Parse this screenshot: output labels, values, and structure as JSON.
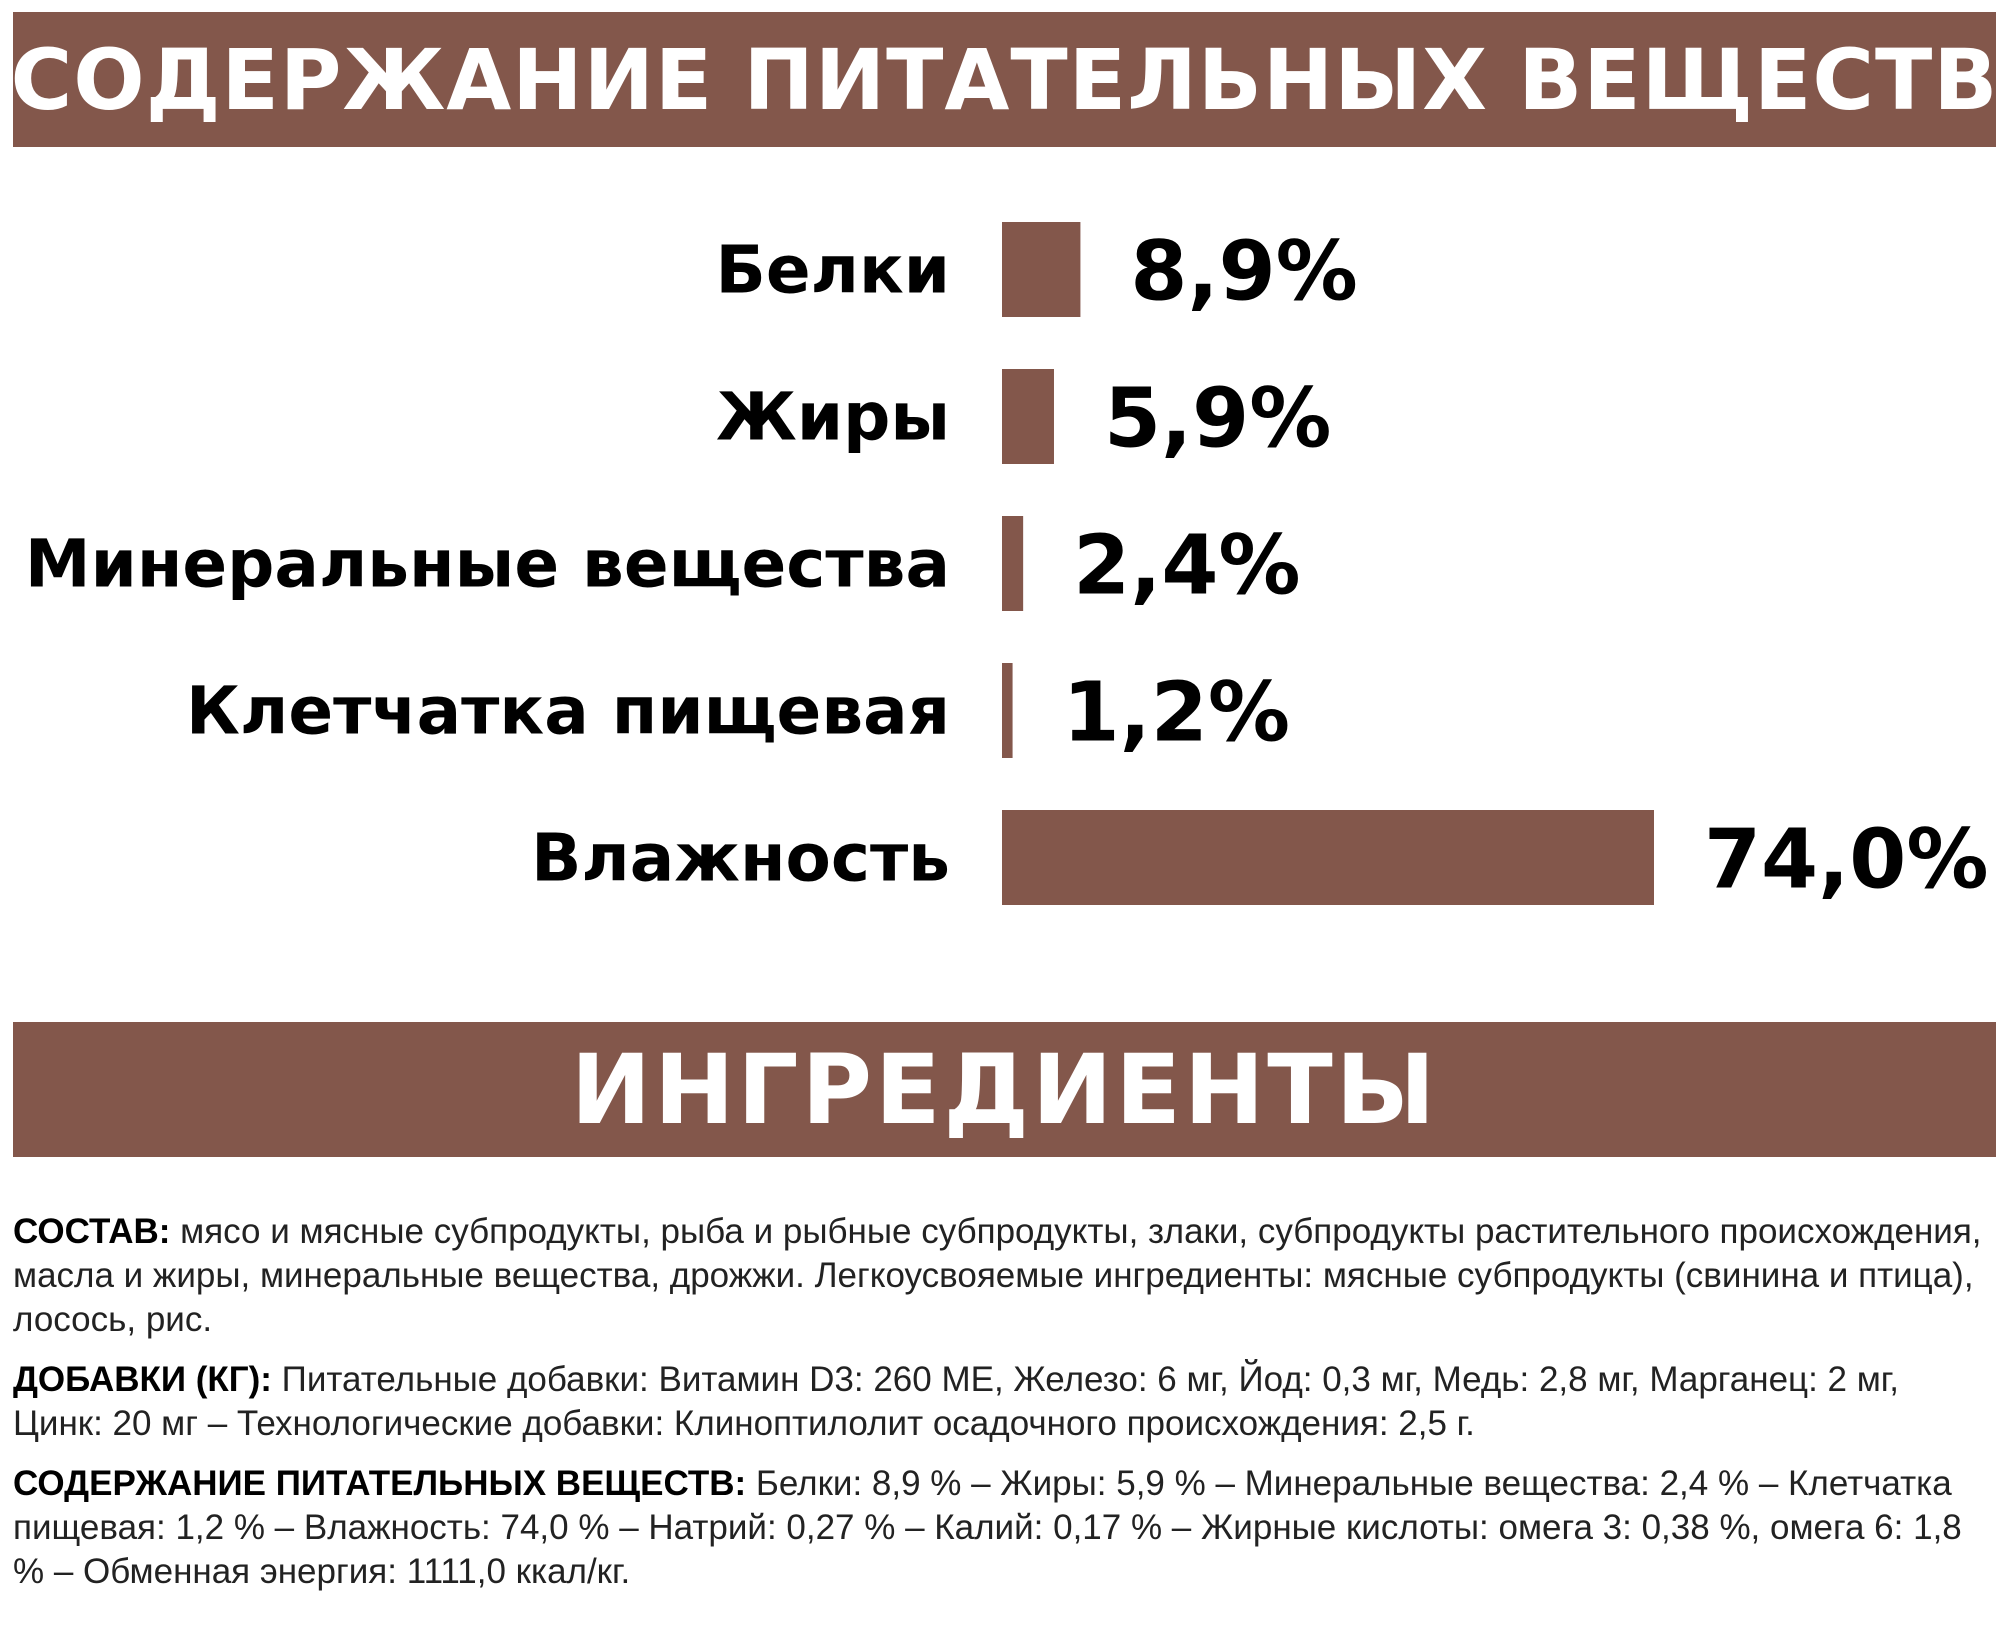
{
  "header": {
    "nutrients_title": "СОДЕРЖАНИЕ ПИТАТЕЛЬНЫХ ВЕЩЕСТВ",
    "ingredients_title": "ИНГРЕДИЕНТЫ"
  },
  "colors": {
    "accent": "#83574b",
    "text": "#000000",
    "background": "#ffffff"
  },
  "chart_data": {
    "type": "bar",
    "orientation": "horizontal",
    "categories": [
      "Белки",
      "Жиры",
      "Минеральные вещества",
      "Клетчатка пищевая",
      "Влажность"
    ],
    "values": [
      8.9,
      5.9,
      2.4,
      1.2,
      74.0
    ],
    "value_labels": [
      "8,9%",
      "5,9%",
      "2,4%",
      "1,2%",
      "74,0%"
    ],
    "unit": "%",
    "title": "",
    "xlabel": "",
    "ylabel": "",
    "xlim": [
      0,
      74.0
    ],
    "grid": false,
    "legend": "none"
  },
  "ingredients": {
    "composition_label": "СОСТАВ:",
    "composition_text": " мясо и мясные субпродукты, рыба и рыбные субпродукты, злаки, субпродукты растительного происхождения, масла и жиры, минеральные вещества, дрожжи. Легкоусвояемые ингредиенты: мясные субпродукты (свинина и птица), лосось, рис.",
    "additives_label": "ДОБАВКИ (КГ):",
    "additives_text": " Питательные добавки: Витамин D3: 260 МЕ, Железо: 6 мг, Йод: 0,3 мг, Медь: 2,8 мг, Марганец: 2 мг, Цинк: 20 мг – Технологические добавки: Клиноптилолит осадочного происхождения: 2,5 г.",
    "nutrients_label": "СОДЕРЖАНИЕ ПИТАТЕЛЬНЫХ ВЕЩЕСТВ:",
    "nutrients_text": " Белки: 8,9 % – Жиры: 5,9 % – Минеральные вещества: 2,4 % – Клетчатка пищевая: 1,2 % – Влажность: 74,0 % – Натрий: 0,27 % – Калий: 0,17 % – Жирные кислоты: омега 3: 0,38 %, омега 6: 1,8 % – Обменная энергия: 1111,0 ккал/кг."
  }
}
